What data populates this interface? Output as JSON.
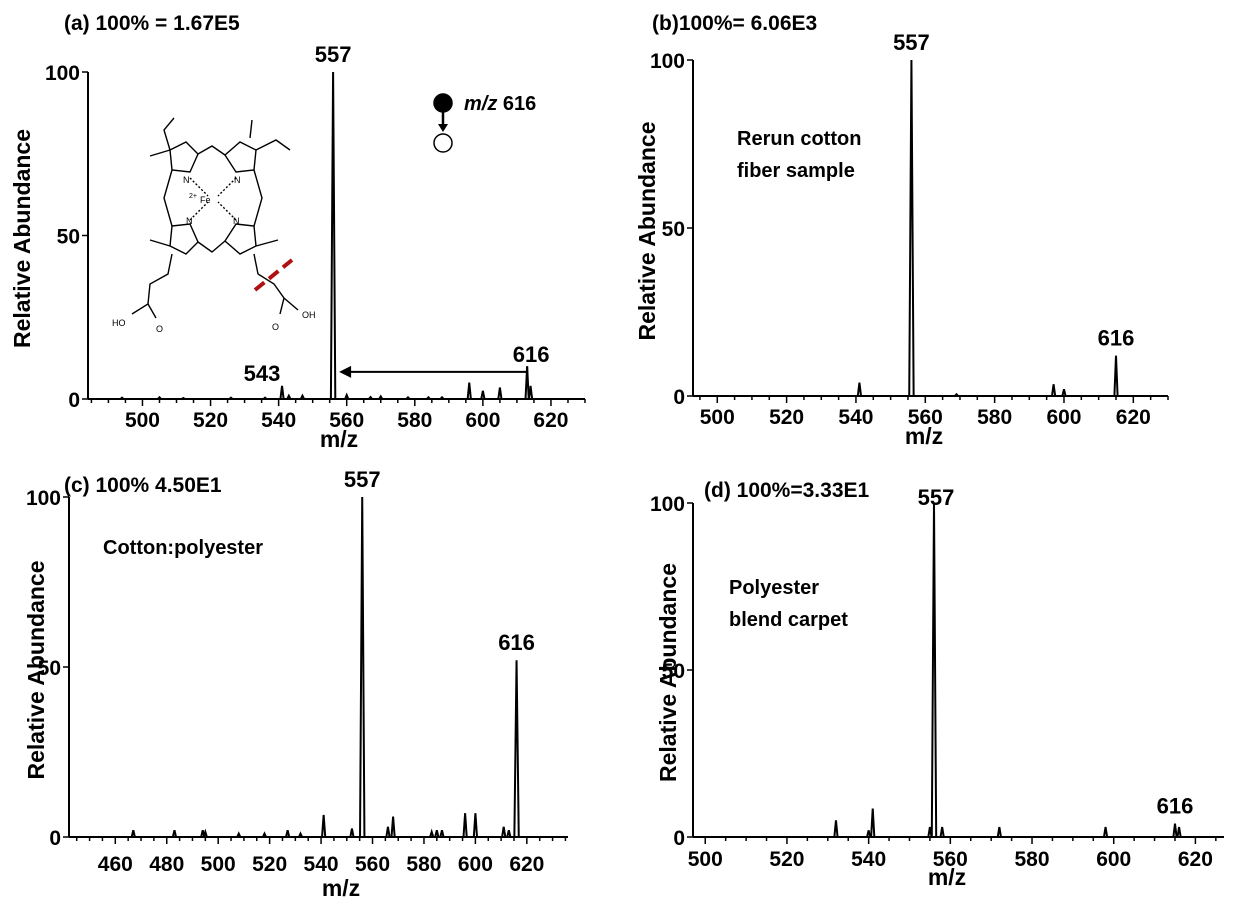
{
  "chart_data": [
    {
      "type": "line",
      "panel": "a",
      "title": "(a) 100% = 1.67E5",
      "xlabel": "m/z",
      "ylabel": "Relative Abundance",
      "xlim": [
        484,
        630
      ],
      "ylim": [
        0,
        100
      ],
      "xticks": [
        500,
        520,
        540,
        560,
        580,
        600,
        620
      ],
      "yticks": [
        0,
        50,
        100
      ],
      "annotation": [
        "m/z 616"
      ],
      "peaks": [
        {
          "x": 494,
          "y": 0.4
        },
        {
          "x": 505,
          "y": 0.5
        },
        {
          "x": 512,
          "y": 0.3
        },
        {
          "x": 526,
          "y": 0.4
        },
        {
          "x": 536,
          "y": 0.4
        },
        {
          "x": 541,
          "y": 4,
          "label": "543"
        },
        {
          "x": 543,
          "y": 1
        },
        {
          "x": 547,
          "y": 1
        },
        {
          "x": 556,
          "y": 100,
          "label": "557"
        },
        {
          "x": 560,
          "y": 1.2
        },
        {
          "x": 567,
          "y": 0.6
        },
        {
          "x": 570,
          "y": 0.8
        },
        {
          "x": 578,
          "y": 0.5
        },
        {
          "x": 584,
          "y": 0.5
        },
        {
          "x": 588,
          "y": 0.5
        },
        {
          "x": 596,
          "y": 5
        },
        {
          "x": 600,
          "y": 2.5
        },
        {
          "x": 605,
          "y": 3.5
        },
        {
          "x": 613,
          "y": 10,
          "label": "616"
        },
        {
          "x": 614,
          "y": 4
        }
      ]
    },
    {
      "type": "line",
      "panel": "b",
      "title": "(b)100%= 6.06E3",
      "xlabel": "m/z",
      "ylabel": "Relative Abundance",
      "xlim": [
        493,
        630
      ],
      "ylim": [
        0,
        100
      ],
      "xticks": [
        500,
        520,
        540,
        560,
        580,
        600,
        620
      ],
      "yticks": [
        0,
        50,
        100
      ],
      "annotation": [
        "Rerun cotton",
        "fiber sample"
      ],
      "peaks": [
        {
          "x": 541,
          "y": 4
        },
        {
          "x": 556,
          "y": 100,
          "label": "557"
        },
        {
          "x": 569,
          "y": 0.5
        },
        {
          "x": 597,
          "y": 3.5
        },
        {
          "x": 600,
          "y": 2
        },
        {
          "x": 615,
          "y": 12,
          "label": "616"
        }
      ]
    },
    {
      "type": "line",
      "panel": "c",
      "title": "(c) 100% 4.50E1",
      "xlabel": "m/z",
      "ylabel": "Relative Abundance",
      "xlim": [
        442,
        636
      ],
      "ylim": [
        0,
        100
      ],
      "xticks": [
        460,
        480,
        500,
        520,
        540,
        560,
        580,
        600,
        620
      ],
      "yticks": [
        0,
        50,
        100
      ],
      "annotation": [
        "Cotton:polyester"
      ],
      "peaks": [
        {
          "x": 467,
          "y": 2
        },
        {
          "x": 483,
          "y": 2
        },
        {
          "x": 494,
          "y": 2
        },
        {
          "x": 495,
          "y": 1.5
        },
        {
          "x": 508,
          "y": 1
        },
        {
          "x": 518,
          "y": 1
        },
        {
          "x": 527,
          "y": 2
        },
        {
          "x": 532,
          "y": 1
        },
        {
          "x": 541,
          "y": 6.5
        },
        {
          "x": 552,
          "y": 2.5
        },
        {
          "x": 556,
          "y": 100,
          "label": "557"
        },
        {
          "x": 566,
          "y": 3
        },
        {
          "x": 568,
          "y": 6
        },
        {
          "x": 583,
          "y": 1.5
        },
        {
          "x": 585,
          "y": 2
        },
        {
          "x": 587,
          "y": 2
        },
        {
          "x": 596,
          "y": 7
        },
        {
          "x": 600,
          "y": 7
        },
        {
          "x": 611,
          "y": 3
        },
        {
          "x": 613,
          "y": 2
        },
        {
          "x": 616,
          "y": 52,
          "label": "616"
        }
      ]
    },
    {
      "type": "line",
      "panel": "d",
      "title": "(d) 100%=3.33E1",
      "xlabel": "m/z",
      "ylabel": "Relative Abundance",
      "xlim": [
        497,
        627
      ],
      "ylim": [
        0,
        100
      ],
      "xticks": [
        500,
        520,
        540,
        560,
        580,
        600,
        620
      ],
      "yticks": [
        0,
        50,
        100
      ],
      "annotation": [
        "Polyester",
        "blend carpet"
      ],
      "peaks": [
        {
          "x": 532,
          "y": 5
        },
        {
          "x": 540,
          "y": 2
        },
        {
          "x": 541,
          "y": 8.5
        },
        {
          "x": 555,
          "y": 3
        },
        {
          "x": 556,
          "y": 100,
          "label": "557"
        },
        {
          "x": 558,
          "y": 3
        },
        {
          "x": 572,
          "y": 3
        },
        {
          "x": 598,
          "y": 3
        },
        {
          "x": 615,
          "y": 4,
          "label": "616"
        },
        {
          "x": 616,
          "y": 3
        }
      ]
    }
  ],
  "structure": {
    "metal_label": "Fe",
    "metal_charge": "2+",
    "hydroxyl_label": "HO",
    "oh_label": "OH",
    "oxygen_label": "O",
    "nitrogen_label": "N",
    "cleavage_color": "#b01010"
  }
}
